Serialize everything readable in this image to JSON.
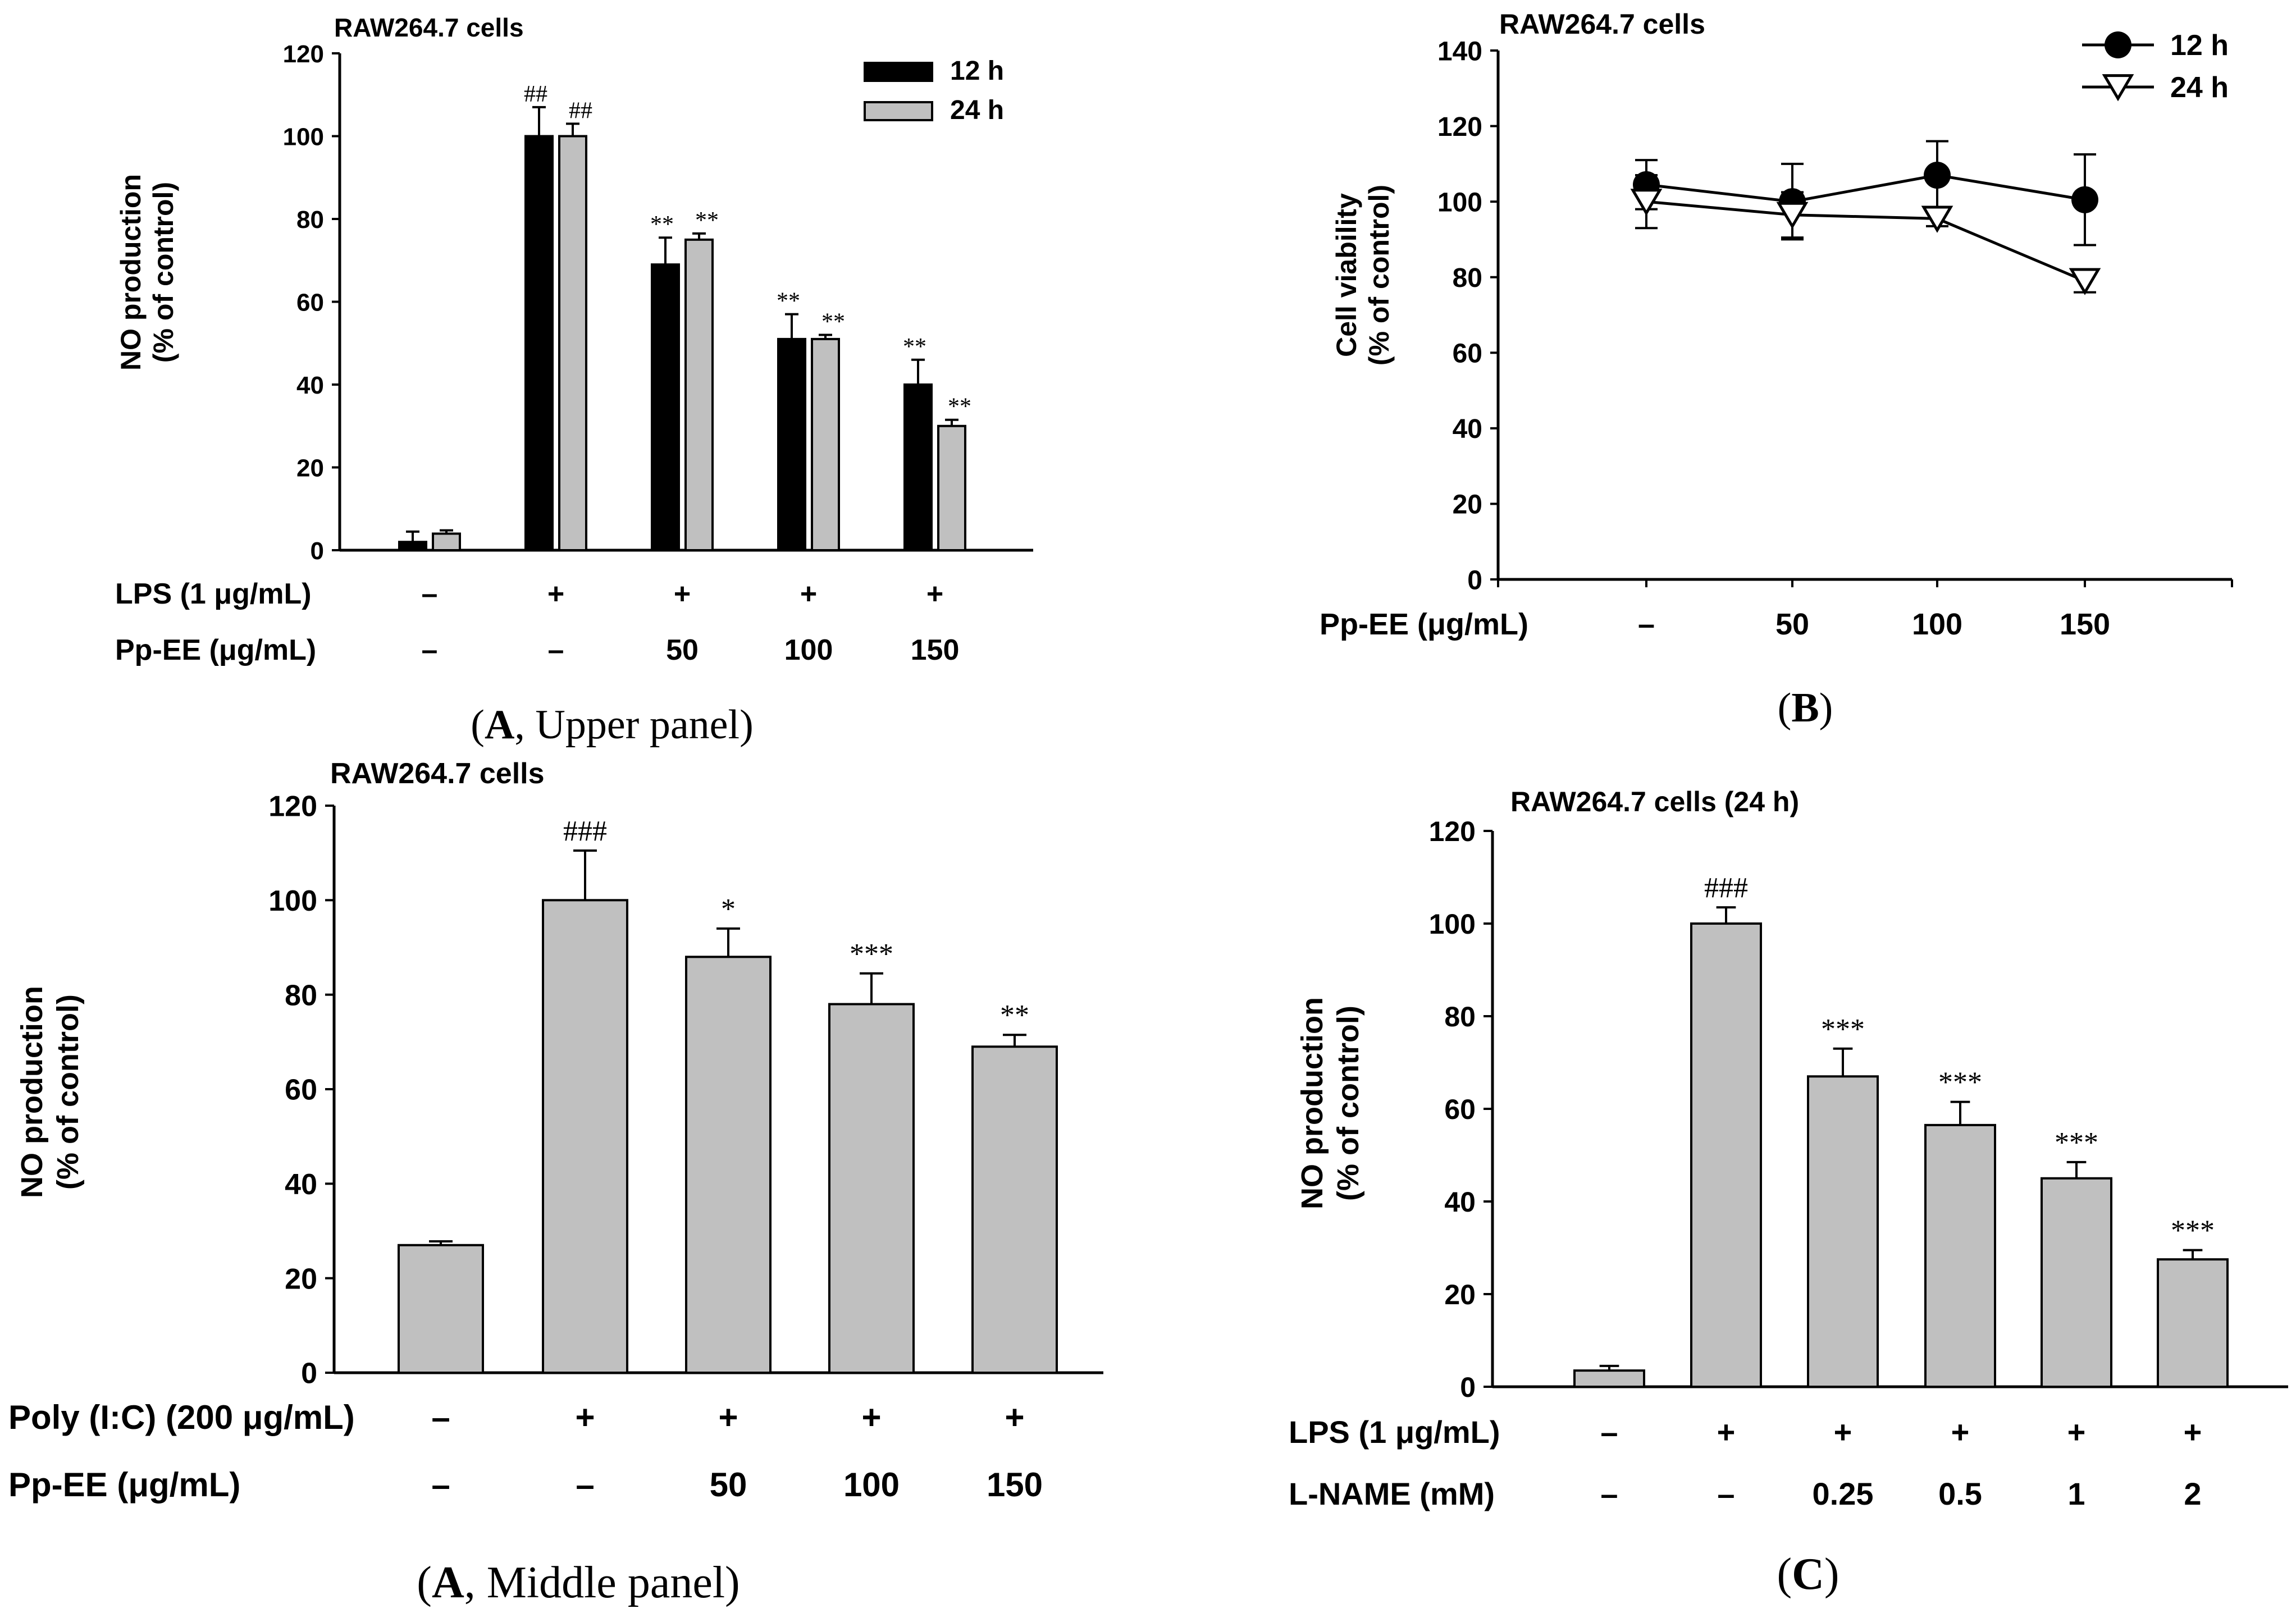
{
  "colors": {
    "dark_bar": "#000000",
    "light_bar": "#c0c0c0",
    "axis": "#000000"
  },
  "chart_data": [
    {
      "id": "A-upper",
      "type": "bar",
      "title": "RAW264.7 cells",
      "ylabel": [
        "NO production",
        "(% of control)"
      ],
      "ylim": [
        0,
        120
      ],
      "yticks": [
        0,
        20,
        40,
        60,
        80,
        100,
        120
      ],
      "legend_position": "top-right",
      "row_labels": [
        "LPS (1 μg/mL)",
        "Pp-EE (μg/mL)"
      ],
      "categories": [
        {
          "rows": [
            "–",
            "–"
          ]
        },
        {
          "rows": [
            "+",
            "–"
          ]
        },
        {
          "rows": [
            "+",
            "50"
          ]
        },
        {
          "rows": [
            "+",
            "100"
          ]
        },
        {
          "rows": [
            "+",
            "150"
          ]
        }
      ],
      "series": [
        {
          "name": "12 h",
          "color": "#000000",
          "values": [
            2,
            100,
            69,
            51,
            40
          ],
          "errors": [
            2.5,
            7,
            6.5,
            6,
            6
          ],
          "annotations": [
            "",
            "##",
            "**",
            "**",
            "**"
          ]
        },
        {
          "name": "24 h",
          "color": "#c0c0c0",
          "values": [
            4,
            100,
            75,
            51,
            30
          ],
          "errors": [
            0.8,
            3,
            1.5,
            1,
            1.5
          ],
          "annotations": [
            "",
            "##",
            "**",
            "**",
            "**"
          ]
        }
      ],
      "caption": {
        "open": "(",
        "letter": "A",
        "rest": ", Upper panel)"
      }
    },
    {
      "id": "B",
      "type": "line",
      "title": "RAW264.7 cells",
      "ylabel": [
        "Cell viability",
        "(% of control)"
      ],
      "ylim": [
        0,
        140
      ],
      "yticks": [
        0,
        20,
        40,
        60,
        80,
        100,
        120,
        140
      ],
      "legend_position": "top-right",
      "row_labels": [
        "Pp-EE (μg/mL)"
      ],
      "categories": [
        {
          "rows": [
            "–"
          ]
        },
        {
          "rows": [
            "50"
          ]
        },
        {
          "rows": [
            "100"
          ]
        },
        {
          "rows": [
            "150"
          ]
        }
      ],
      "series": [
        {
          "name": "12 h",
          "marker": "filled-circle",
          "values": [
            104.5,
            100,
            107,
            100.5
          ],
          "errors": [
            6.5,
            10,
            9,
            12
          ]
        },
        {
          "name": "24 h",
          "marker": "open-triangle-down",
          "values": [
            100,
            96.5,
            95.5,
            79
          ],
          "errors": [
            7,
            6,
            2,
            3
          ]
        }
      ],
      "caption": {
        "open": "(",
        "letter": "B",
        "rest": ")"
      }
    },
    {
      "id": "A-middle",
      "type": "bar",
      "title": "RAW264.7 cells",
      "ylabel": [
        "NO production",
        "(% of control)"
      ],
      "ylim": [
        0,
        120
      ],
      "yticks": [
        0,
        20,
        40,
        60,
        80,
        100,
        120
      ],
      "row_labels": [
        "Poly (I:C) (200 μg/mL)",
        "Pp-EE (μg/mL)"
      ],
      "categories": [
        {
          "rows": [
            "–",
            "–"
          ]
        },
        {
          "rows": [
            "+",
            "–"
          ]
        },
        {
          "rows": [
            "+",
            "50"
          ]
        },
        {
          "rows": [
            "+",
            "100"
          ]
        },
        {
          "rows": [
            "+",
            "150"
          ]
        }
      ],
      "series": [
        {
          "name": "",
          "color": "#c0c0c0",
          "values": [
            27,
            100,
            88,
            78,
            69
          ],
          "errors": [
            0.8,
            10.5,
            6,
            6.5,
            2.5
          ],
          "annotations": [
            "",
            "###",
            "*",
            "***",
            "**"
          ]
        }
      ],
      "caption": {
        "open": "(",
        "letter": "A",
        "rest": ", Middle panel)"
      }
    },
    {
      "id": "C",
      "type": "bar",
      "title": "RAW264.7 cells (24 h)",
      "ylabel": [
        "NO production",
        "(% of control)"
      ],
      "ylim": [
        0,
        120
      ],
      "yticks": [
        0,
        20,
        40,
        60,
        80,
        100,
        120
      ],
      "row_labels": [
        "LPS (1 μg/mL)",
        "L-NAME (mM)"
      ],
      "categories": [
        {
          "rows": [
            "–",
            "–"
          ]
        },
        {
          "rows": [
            "+",
            "–"
          ]
        },
        {
          "rows": [
            "+",
            "0.25"
          ]
        },
        {
          "rows": [
            "+",
            "0.5"
          ]
        },
        {
          "rows": [
            "+",
            "1"
          ]
        },
        {
          "rows": [
            "+",
            "2"
          ]
        }
      ],
      "series": [
        {
          "name": "",
          "color": "#c0c0c0",
          "values": [
            3.5,
            100,
            67,
            56.5,
            45,
            27.5
          ],
          "errors": [
            1,
            3.5,
            6,
            5,
            3.5,
            2
          ],
          "annotations": [
            "",
            "###",
            "***",
            "***",
            "***",
            "***"
          ]
        }
      ],
      "caption": {
        "open": "(",
        "letter": "C",
        "rest": ")"
      }
    }
  ]
}
